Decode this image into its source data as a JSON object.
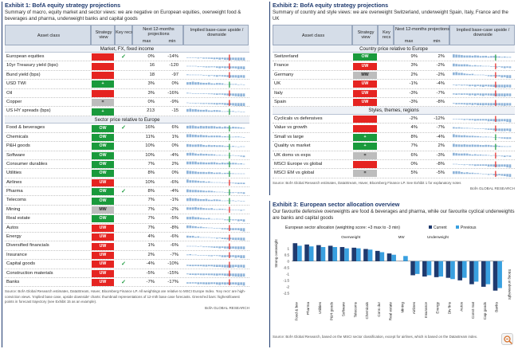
{
  "exhibit1": {
    "title": "Exhibit 1: BofA equity strategy projections",
    "subtitle": "Summary of macro, equity market and sector views: we are negative on European equities, overweight food & beverages and pharma, underweight banks and capital goods",
    "headers": {
      "asset_class": "Asset class",
      "strategy_view": "Strategy view",
      "key_recs": "Key recs",
      "projections": "Next 12-months projections",
      "max": "max",
      "min": "min",
      "implied": "Implied base-case upside / downside"
    },
    "sections": [
      {
        "title": "Market, FX, fixed income",
        "rows": [
          {
            "name": "European equities",
            "view": "",
            "color": "red",
            "rec": true,
            "max": "0%",
            "min": "-14%"
          },
          {
            "name": "10yr Treasury yield (bps)",
            "view": "",
            "color": "red",
            "rec": false,
            "max": "16",
            "min": "-120"
          },
          {
            "name": "Bund yield (bps)",
            "view": "",
            "color": "red",
            "rec": false,
            "max": "18",
            "min": "-97"
          },
          {
            "name": "USD TWI",
            "view": "+",
            "color": "green",
            "rec": false,
            "max": "3%",
            "min": "0%"
          },
          {
            "name": "Oil",
            "view": "",
            "color": "red",
            "rec": false,
            "max": "3%",
            "min": "-16%"
          },
          {
            "name": "Copper",
            "view": "=",
            "color": "grey",
            "rec": false,
            "max": "0%",
            "min": "-9%"
          },
          {
            "name": "US HY spreads (bps)",
            "view": "+",
            "color": "green",
            "rec": false,
            "max": "213",
            "min": "-15"
          }
        ]
      },
      {
        "title": "Sector price relative to Europe",
        "rows": [
          {
            "name": "Food & beverages",
            "view": "OW",
            "color": "green",
            "rec": true,
            "max": "16%",
            "min": "6%"
          },
          {
            "name": "Chemicals",
            "view": "OW",
            "color": "green",
            "rec": false,
            "max": "11%",
            "min": "1%"
          },
          {
            "name": "P&H goods",
            "view": "OW",
            "color": "green",
            "rec": false,
            "max": "10%",
            "min": "0%"
          },
          {
            "name": "Software",
            "view": "OW",
            "color": "green",
            "rec": false,
            "max": "10%",
            "min": "-4%"
          },
          {
            "name": "Consumer durables",
            "view": "OW",
            "color": "green",
            "rec": false,
            "max": "7%",
            "min": "2%"
          },
          {
            "name": "Utilities",
            "view": "OW",
            "color": "green",
            "rec": false,
            "max": "8%",
            "min": "0%"
          },
          {
            "name": "Airlines",
            "view": "UW",
            "color": "red",
            "rec": false,
            "max": "10%",
            "min": "-6%"
          },
          {
            "name": "Pharma",
            "view": "OW",
            "color": "green",
            "rec": true,
            "max": "8%",
            "min": "-4%"
          },
          {
            "name": "Telecoms",
            "view": "OW",
            "color": "green",
            "rec": false,
            "max": "7%",
            "min": "-1%"
          },
          {
            "name": "Mining",
            "view": "MW",
            "color": "grey",
            "rec": false,
            "max": "7%",
            "min": "-2%"
          },
          {
            "name": "Real estate",
            "view": "OW",
            "color": "green",
            "rec": false,
            "max": "7%",
            "min": "-5%"
          },
          {
            "name": "Autos",
            "view": "UW",
            "color": "red",
            "rec": false,
            "max": "7%",
            "min": "-8%"
          },
          {
            "name": "Energy",
            "view": "UW",
            "color": "red",
            "rec": false,
            "max": "4%",
            "min": "-6%"
          },
          {
            "name": "Diversified financials",
            "view": "UW",
            "color": "red",
            "rec": false,
            "max": "1%",
            "min": "-6%"
          },
          {
            "name": "Insurance",
            "view": "UW",
            "color": "red",
            "rec": false,
            "max": "2%",
            "min": "-7%"
          },
          {
            "name": "Capital goods",
            "view": "UW",
            "color": "red",
            "rec": true,
            "max": "-4%",
            "min": "-10%"
          },
          {
            "name": "Construction materials",
            "view": "UW",
            "color": "red",
            "rec": false,
            "max": "-5%",
            "min": "-15%"
          },
          {
            "name": "Banks",
            "view": "UW",
            "color": "red",
            "rec": true,
            "max": "-7%",
            "min": "-17%"
          }
        ]
      }
    ],
    "note": "Source: BofA Global Research estimates, DataStream, Haver, Bloomberg Finance LP. All weightings are relative to MSCI Europe Index. 'Key recs' are high-conviction views. 'Implied base case, upside downside' charts: thumbnail representations of 12-mth base case forecasts. Green/red bars: highest/lowest points in forecast trajectory (see Exhibit 15 as an example).",
    "brand": "BofA GLOBAL RESEARCH"
  },
  "exhibit2": {
    "title": "Exhibit 2: BofA equity strategy projections",
    "subtitle": "Summary of country and style views: we are overweight Switzerland, underweight Spain, Italy, France and the UK",
    "headers": {
      "asset_class": "Asset class",
      "strategy_view": "Strategy view",
      "key_recs": "Key recs",
      "projections": "Next 12-months projections",
      "max": "max",
      "min": "min",
      "implied": "Implied base-case upside / downside"
    },
    "sections": [
      {
        "title": "Country price relative to Europe",
        "rows": [
          {
            "name": "Switzerland",
            "view": "OW",
            "color": "green",
            "rec": false,
            "max": "9%",
            "min": "2%"
          },
          {
            "name": "France",
            "view": "UW",
            "color": "red",
            "rec": false,
            "max": "3%",
            "min": "-2%"
          },
          {
            "name": "Germany",
            "view": "MW",
            "color": "grey",
            "rec": false,
            "max": "2%",
            "min": "-2%"
          },
          {
            "name": "UK",
            "view": "UW",
            "color": "red",
            "rec": false,
            "max": "-1%",
            "min": "-4%"
          },
          {
            "name": "Italy",
            "view": "UW",
            "color": "red",
            "rec": false,
            "max": "-3%",
            "min": "-7%"
          },
          {
            "name": "Spain",
            "view": "UW",
            "color": "red",
            "rec": false,
            "max": "-3%",
            "min": "-8%"
          }
        ]
      },
      {
        "title": "Styles, themes, regions",
        "rows": [
          {
            "name": "Cyclicals vs defensives",
            "view": "",
            "color": "red",
            "rec": false,
            "max": "-2%",
            "min": "-12%"
          },
          {
            "name": "Value vs growth",
            "view": "",
            "color": "red",
            "rec": false,
            "max": "4%",
            "min": "-7%"
          },
          {
            "name": "Small vs large",
            "view": "+",
            "color": "green",
            "rec": false,
            "max": "8%",
            "min": "-4%"
          },
          {
            "name": "Quality vs market",
            "view": "+",
            "color": "green",
            "rec": false,
            "max": "7%",
            "min": "2%"
          },
          {
            "name": "UK doms vs exps",
            "view": "=",
            "color": "grey",
            "rec": false,
            "max": "6%",
            "min": "-3%"
          },
          {
            "name": "MSCI Europe vs global",
            "view": "",
            "color": "red",
            "rec": false,
            "max": "0%",
            "min": "-8%"
          },
          {
            "name": "MSCI EM vs global",
            "view": "=",
            "color": "grey",
            "rec": false,
            "max": "5%",
            "min": "-5%"
          }
        ]
      }
    ],
    "note": "Source: BofA Global Research estimates, DataStream, Haver, Bloomberg Finance LP. See Exhibit 1 for explanatory notes",
    "brand": "BofA GLOBAL RESEARCH"
  },
  "exhibit3": {
    "title": "Exhibit 3: European sector allocation overview",
    "subtitle": "Our favourite defensive overweights are food & beverages and pharma, while our favourite cyclical underweights are banks and capital goods",
    "note": "Source: BofA Global Research, based on the MSCI sector classification, except for airlines, which is based on the Datastream index.",
    "brand": "BofA GLOBAL RESEARCH"
  },
  "chart_data": {
    "type": "bar",
    "title": "European sector allocation (weighting score: +3 max to -3 min)",
    "ylabel_top": "Strong overweight",
    "ylabel_bottom": "Strong underweight",
    "group_labels": {
      "overweight": "Overweight",
      "mw": "MW",
      "underweight": "Underweight"
    },
    "categories": [
      "Food & bev",
      "Pharma",
      "Utilities",
      "P&H goods",
      "Software",
      "Telecoms",
      "Chemicals",
      "Cons dur",
      "Real estate",
      "Mining",
      "Airlines",
      "Insurance",
      "Energy",
      "Div fins",
      "Autos",
      "Const mat",
      "Cap goods",
      "Banks"
    ],
    "ylim": [
      -3,
      1.6
    ],
    "series": [
      {
        "name": "Current",
        "color": "#1f3a6e",
        "values": [
          1.4,
          1.3,
          1.25,
          1.2,
          1.1,
          1.05,
          0.95,
          0.8,
          0.6,
          0,
          -1.1,
          -1.2,
          -1.25,
          -1.3,
          -1.5,
          -1.8,
          -2.0,
          -2.3
        ]
      },
      {
        "name": "Previous",
        "color": "#39a0e0",
        "values": [
          1.2,
          1.15,
          1.1,
          1.1,
          1.0,
          1.0,
          0.9,
          0.7,
          0.5,
          0.4,
          -1.0,
          -1.1,
          -1.2,
          -1.4,
          -1.3,
          -1.6,
          -1.8,
          -2.1
        ]
      }
    ]
  }
}
